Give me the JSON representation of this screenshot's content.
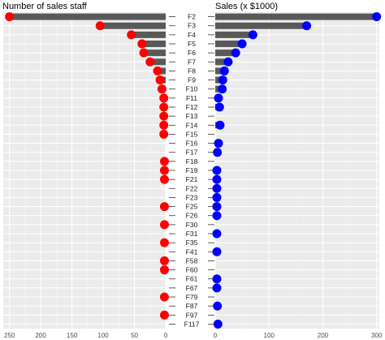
{
  "chart_data": [
    {
      "type": "lollipop",
      "title": "Number of sales staff",
      "xlim": [
        260,
        0
      ],
      "xticks": [
        250,
        200,
        150,
        100,
        50,
        0
      ],
      "point_color": "#ff0000",
      "bar_color": "#595959",
      "categories": [
        "F2",
        "F3",
        "F4",
        "F5",
        "F6",
        "F7",
        "F8",
        "F9",
        "F10",
        "F11",
        "F12",
        "F13",
        "F14",
        "F15",
        "F16",
        "F17",
        "F18",
        "F19",
        "F21",
        "F22",
        "F23",
        "F25",
        "F26",
        "F30",
        "F31",
        "F35",
        "F41",
        "F58",
        "F60",
        "F61",
        "F67",
        "F79",
        "F87",
        "F97",
        "F117"
      ],
      "values": [
        250,
        105,
        55,
        38,
        35,
        25,
        13,
        9,
        6,
        3,
        3,
        3,
        3,
        3,
        null,
        null,
        2,
        2,
        2,
        null,
        null,
        2,
        null,
        2,
        null,
        2,
        null,
        2,
        2,
        null,
        null,
        2,
        null,
        2,
        null
      ]
    },
    {
      "type": "lollipop",
      "title": "Sales (x $1000)",
      "xlim": [
        0,
        305
      ],
      "xticks": [
        0,
        100,
        200,
        300
      ],
      "point_color": "#0000ff",
      "bar_color": "#595959",
      "categories": [
        "F2",
        "F3",
        "F4",
        "F5",
        "F6",
        "F7",
        "F8",
        "F9",
        "F10",
        "F11",
        "F12",
        "F13",
        "F14",
        "F15",
        "F16",
        "F17",
        "F18",
        "F19",
        "F21",
        "F22",
        "F23",
        "F25",
        "F26",
        "F30",
        "F31",
        "F35",
        "F41",
        "F58",
        "F60",
        "F61",
        "F67",
        "F79",
        "F87",
        "F97",
        "F117"
      ],
      "values": [
        300,
        170,
        70,
        50,
        38,
        24,
        17,
        14,
        13,
        6,
        8,
        null,
        9,
        null,
        6,
        4,
        null,
        3,
        3,
        3,
        3,
        3,
        3,
        null,
        3,
        null,
        3,
        null,
        null,
        3,
        3,
        null,
        4,
        null,
        5
      ]
    }
  ]
}
